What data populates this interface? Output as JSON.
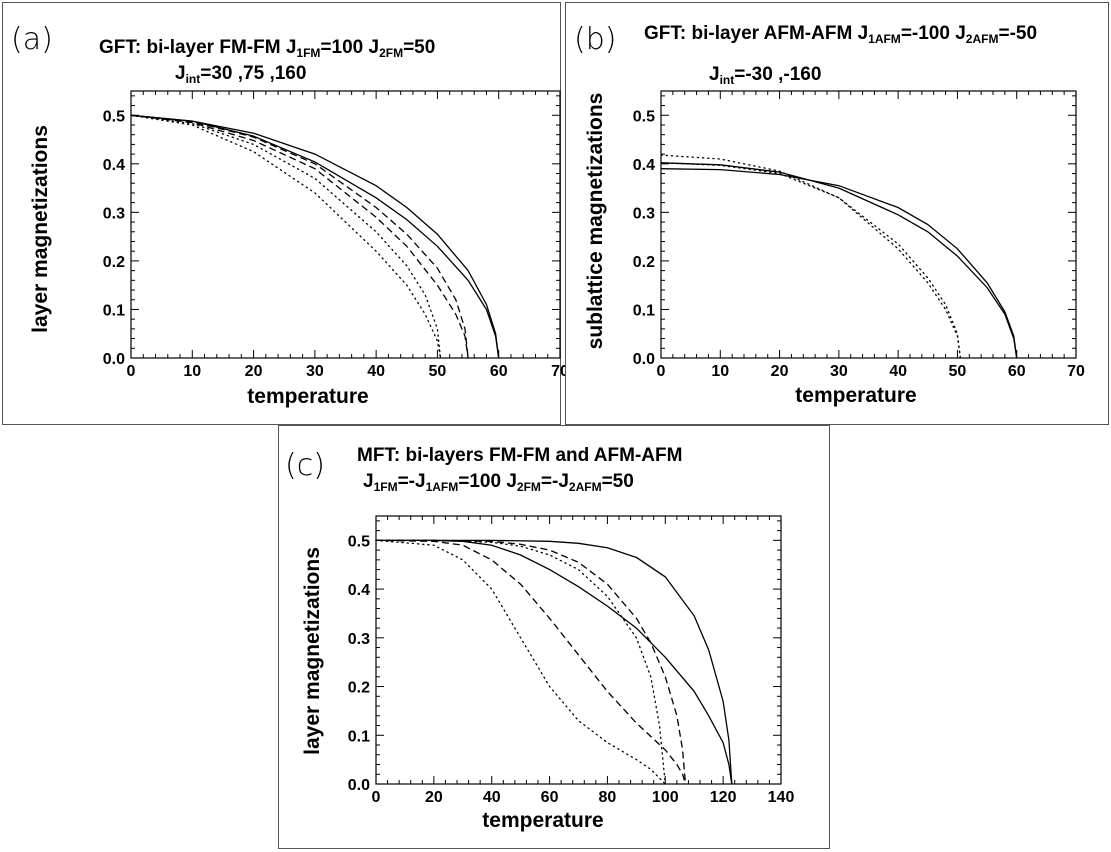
{
  "panels": [
    {
      "id": "a",
      "label": "(a)",
      "title_line1": [
        {
          "t": "GFT: bi-layer FM-FM J"
        },
        {
          "t": "1FM",
          "sub": true
        },
        {
          "t": "=100  J"
        },
        {
          "t": "2FM",
          "sub": true
        },
        {
          "t": "=50"
        }
      ],
      "title_line2": [
        {
          "t": "J"
        },
        {
          "t": "int",
          "sub": true
        },
        {
          "t": "=30 ,75 ,160"
        }
      ]
    },
    {
      "id": "b",
      "label": "(b)",
      "title_line1": [
        {
          "t": "GFT: bi-layer AFM-AFM J"
        },
        {
          "t": "1AFM",
          "sub": true
        },
        {
          "t": "=-100 J"
        },
        {
          "t": "2AFM",
          "sub": true
        },
        {
          "t": "=-50"
        }
      ],
      "title_line2": [
        {
          "t": "J"
        },
        {
          "t": "int",
          "sub": true
        },
        {
          "t": "=-30   ,-160"
        }
      ]
    },
    {
      "id": "c",
      "label": "(c)",
      "title_line1": [
        {
          "t": "MFT: bi-layers FM-FM and AFM-AFM"
        }
      ],
      "title_line2": [
        {
          "t": "J"
        },
        {
          "t": "1FM",
          "sub": true
        },
        {
          "t": "=-J"
        },
        {
          "t": "1AFM",
          "sub": true
        },
        {
          "t": "=100 J"
        },
        {
          "t": "2FM",
          "sub": true
        },
        {
          "t": "=-J"
        },
        {
          "t": "2AFM",
          "sub": true
        },
        {
          "t": "=50"
        }
      ]
    }
  ],
  "chart_data": [
    {
      "panel": "a",
      "type": "line",
      "xlabel": "temperature",
      "ylabel": "layer magnetizations",
      "xlim": [
        0,
        70
      ],
      "ylim": [
        0,
        0.55
      ],
      "xticks": [
        0,
        10,
        20,
        30,
        40,
        50,
        60,
        70
      ],
      "yticks": [
        0.0,
        0.1,
        0.2,
        0.3,
        0.4,
        0.5
      ],
      "ytick_labels": [
        "0.0",
        "0.1",
        "0.2",
        "0.3",
        "0.4",
        "0.5"
      ],
      "series": [
        {
          "style": "solid",
          "x": [
            0,
            10,
            20,
            30,
            40,
            45,
            50,
            55,
            58,
            59.5,
            60
          ],
          "y": [
            0.5,
            0.488,
            0.463,
            0.42,
            0.355,
            0.31,
            0.255,
            0.18,
            0.11,
            0.05,
            0.0
          ]
        },
        {
          "style": "solid",
          "x": [
            0,
            10,
            20,
            30,
            40,
            45,
            50,
            55,
            58,
            59.5,
            60
          ],
          "y": [
            0.5,
            0.488,
            0.457,
            0.404,
            0.33,
            0.285,
            0.23,
            0.16,
            0.1,
            0.045,
            0.0
          ]
        },
        {
          "style": "dashed",
          "x": [
            0,
            10,
            20,
            30,
            40,
            45,
            50,
            53,
            54.5,
            55
          ],
          "y": [
            0.5,
            0.487,
            0.455,
            0.4,
            0.31,
            0.255,
            0.185,
            0.12,
            0.06,
            0.0
          ]
        },
        {
          "style": "dashed",
          "x": [
            0,
            10,
            20,
            30,
            40,
            45,
            50,
            53,
            54.5,
            55
          ],
          "y": [
            0.5,
            0.485,
            0.448,
            0.39,
            0.29,
            0.23,
            0.15,
            0.09,
            0.045,
            0.0
          ]
        },
        {
          "style": "dotted",
          "x": [
            0,
            10,
            20,
            30,
            40,
            45,
            48,
            50,
            50.5
          ],
          "y": [
            0.5,
            0.483,
            0.44,
            0.37,
            0.26,
            0.19,
            0.13,
            0.06,
            0.0
          ]
        },
        {
          "style": "dotted",
          "x": [
            0,
            10,
            20,
            30,
            40,
            45,
            48,
            50,
            50.5
          ],
          "y": [
            0.5,
            0.48,
            0.425,
            0.34,
            0.22,
            0.15,
            0.09,
            0.035,
            0.0
          ]
        }
      ]
    },
    {
      "panel": "b",
      "type": "line",
      "xlabel": "temperature",
      "ylabel": "sublattice magnetizations",
      "xlim": [
        0,
        70
      ],
      "ylim": [
        0,
        0.55
      ],
      "xticks": [
        0,
        10,
        20,
        30,
        40,
        50,
        60,
        70
      ],
      "yticks": [
        0.0,
        0.1,
        0.2,
        0.3,
        0.4,
        0.5
      ],
      "ytick_labels": [
        "0.0",
        "0.1",
        "0.2",
        "0.3",
        "0.4",
        "0.5"
      ],
      "series": [
        {
          "style": "solid",
          "x": [
            0,
            10,
            20,
            30,
            40,
            45,
            50,
            55,
            58,
            59.5,
            60
          ],
          "y": [
            0.39,
            0.388,
            0.378,
            0.355,
            0.31,
            0.275,
            0.225,
            0.155,
            0.095,
            0.045,
            0.0
          ]
        },
        {
          "style": "solid",
          "x": [
            0,
            10,
            20,
            30,
            40,
            45,
            50,
            55,
            58,
            59.5,
            60
          ],
          "y": [
            0.402,
            0.398,
            0.383,
            0.35,
            0.295,
            0.26,
            0.21,
            0.145,
            0.09,
            0.04,
            0.0
          ]
        },
        {
          "style": "dotted",
          "x": [
            0,
            10,
            20,
            30,
            40,
            45,
            48,
            50,
            50.5
          ],
          "y": [
            0.402,
            0.397,
            0.38,
            0.33,
            0.235,
            0.165,
            0.11,
            0.05,
            0.0
          ]
        },
        {
          "style": "dotted",
          "x": [
            0,
            10,
            20,
            30,
            40,
            45,
            48,
            50,
            50.5
          ],
          "y": [
            0.418,
            0.41,
            0.385,
            0.33,
            0.225,
            0.155,
            0.1,
            0.045,
            0.0
          ]
        }
      ]
    },
    {
      "panel": "c",
      "type": "line",
      "xlabel": "temperature",
      "ylabel": "layer magnetizations",
      "xlim": [
        0,
        140
      ],
      "ylim": [
        0,
        0.55
      ],
      "xticks": [
        0,
        20,
        40,
        60,
        80,
        100,
        120,
        140
      ],
      "yticks": [
        0.0,
        0.1,
        0.2,
        0.3,
        0.4,
        0.5
      ],
      "ytick_labels": [
        "0.0",
        "0.1",
        "0.2",
        "0.3",
        "0.4",
        "0.5"
      ],
      "series": [
        {
          "style": "solid",
          "x": [
            0,
            20,
            40,
            60,
            70,
            80,
            90,
            100,
            110,
            115,
            120,
            122,
            123
          ],
          "y": [
            0.5,
            0.5,
            0.5,
            0.498,
            0.494,
            0.485,
            0.465,
            0.425,
            0.345,
            0.275,
            0.17,
            0.09,
            0.0
          ]
        },
        {
          "style": "solid",
          "x": [
            0,
            20,
            30,
            40,
            50,
            60,
            70,
            80,
            90,
            100,
            110,
            115,
            120,
            122,
            123
          ],
          "y": [
            0.5,
            0.5,
            0.498,
            0.49,
            0.47,
            0.44,
            0.405,
            0.365,
            0.32,
            0.26,
            0.19,
            0.14,
            0.085,
            0.04,
            0.0
          ]
        },
        {
          "style": "dashed",
          "x": [
            0,
            20,
            40,
            50,
            60,
            70,
            80,
            90,
            95,
            100,
            104,
            106,
            107
          ],
          "y": [
            0.5,
            0.5,
            0.498,
            0.492,
            0.48,
            0.455,
            0.41,
            0.34,
            0.29,
            0.22,
            0.14,
            0.07,
            0.0
          ]
        },
        {
          "style": "dashed",
          "x": [
            0,
            20,
            30,
            40,
            50,
            60,
            70,
            80,
            90,
            100,
            104,
            106,
            107
          ],
          "y": [
            0.5,
            0.498,
            0.49,
            0.46,
            0.41,
            0.34,
            0.265,
            0.19,
            0.125,
            0.07,
            0.04,
            0.02,
            0.0
          ]
        },
        {
          "style": "dotted",
          "x": [
            0,
            20,
            40,
            50,
            60,
            70,
            80,
            90,
            95,
            98,
            100
          ],
          "y": [
            0.5,
            0.5,
            0.496,
            0.488,
            0.47,
            0.44,
            0.385,
            0.3,
            0.22,
            0.12,
            0.0
          ]
        },
        {
          "style": "dotted",
          "x": [
            0,
            20,
            30,
            40,
            50,
            60,
            70,
            80,
            90,
            95,
            100
          ],
          "y": [
            0.5,
            0.49,
            0.46,
            0.4,
            0.3,
            0.2,
            0.13,
            0.085,
            0.05,
            0.03,
            0.0
          ]
        }
      ]
    }
  ]
}
